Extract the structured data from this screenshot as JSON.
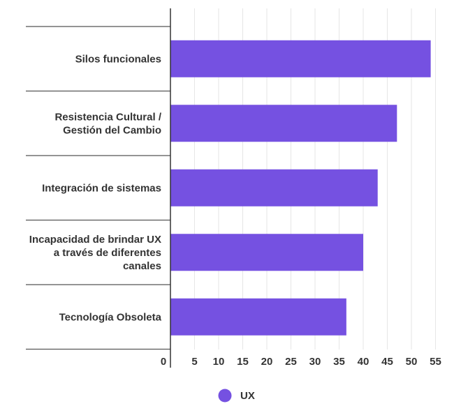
{
  "chart_data": {
    "type": "bar",
    "orientation": "horizontal",
    "categories": [
      [
        "Silos funcionales"
      ],
      [
        "Resistencia Cultural /",
        "Gestión del Cambio"
      ],
      [
        "Integración de sistemas"
      ],
      [
        "Incapacidad de brindar UX",
        "a través de diferentes",
        "canales"
      ],
      [
        "Tecnología Obsoleta"
      ]
    ],
    "series": [
      {
        "name": "UX",
        "values": [
          54,
          47,
          43,
          40,
          36.5
        ]
      }
    ],
    "xticks": [
      "0",
      "5",
      "10",
      "15",
      "20",
      "25",
      "30",
      "35",
      "40",
      "45",
      "50",
      "55"
    ],
    "xlim": [
      0,
      57
    ],
    "grid": true,
    "legend": "bottom",
    "colors": {
      "bar": "#7551e1",
      "grid": "#e6e6e6",
      "separator": "#555555",
      "axis": "#333333",
      "text": "#333333"
    }
  }
}
